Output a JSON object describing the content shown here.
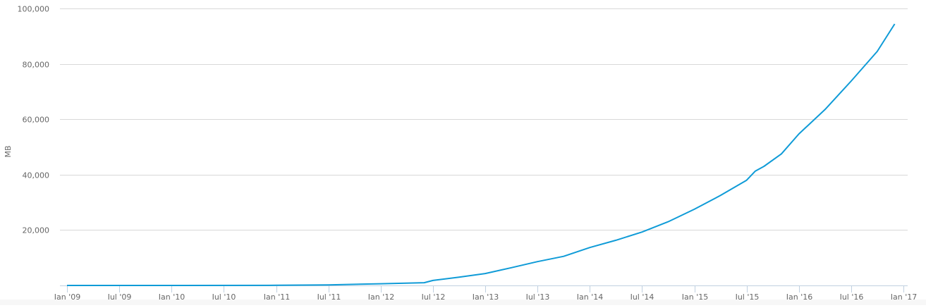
{
  "chart_data": {
    "type": "line",
    "title": "",
    "xlabel": "",
    "ylabel": "MB",
    "ylim": [
      0,
      100000
    ],
    "xlim": [
      "2009-01",
      "2017-01"
    ],
    "grid": true,
    "yticks": [
      20000,
      40000,
      60000,
      80000,
      100000
    ],
    "ytick_labels": [
      "20,000",
      "40,000",
      "60,000",
      "80,000",
      "100,000"
    ],
    "xticks": [
      "2009-01",
      "2009-07",
      "2010-01",
      "2010-07",
      "2011-01",
      "2011-07",
      "2012-01",
      "2012-07",
      "2013-01",
      "2013-07",
      "2014-01",
      "2014-07",
      "2015-01",
      "2015-07",
      "2016-01",
      "2016-07",
      "2017-01"
    ],
    "xtick_labels": [
      "Jan '09",
      "Jul '09",
      "Jan '10",
      "Jul '10",
      "Jan '11",
      "Jul '11",
      "Jan '12",
      "Jul '12",
      "Jan '13",
      "Jul '13",
      "Jan '14",
      "Jul '14",
      "Jan '15",
      "Jul '15",
      "Jan '16",
      "Jul '16",
      "Jan '17"
    ],
    "line_color": "#0f9bd7",
    "series": [
      {
        "x": [
          "2009-01",
          "2010-01",
          "2011-01",
          "2011-07",
          "2012-01",
          "2012-06",
          "2012-07",
          "2012-10",
          "2013-01",
          "2013-04",
          "2013-07",
          "2013-10",
          "2014-01",
          "2014-04",
          "2014-07",
          "2014-10",
          "2015-01",
          "2015-04",
          "2015-07",
          "2015-08",
          "2015-09",
          "2015-11",
          "2016-01",
          "2016-04",
          "2016-07",
          "2016-10",
          "2016-12"
        ],
        "y": [
          0,
          10,
          60,
          200,
          600,
          1000,
          1800,
          3000,
          4300,
          6400,
          8600,
          10500,
          13700,
          16300,
          19300,
          23000,
          27500,
          32500,
          38000,
          41300,
          43000,
          47500,
          54700,
          63500,
          73800,
          84500,
          94400
        ]
      }
    ]
  }
}
